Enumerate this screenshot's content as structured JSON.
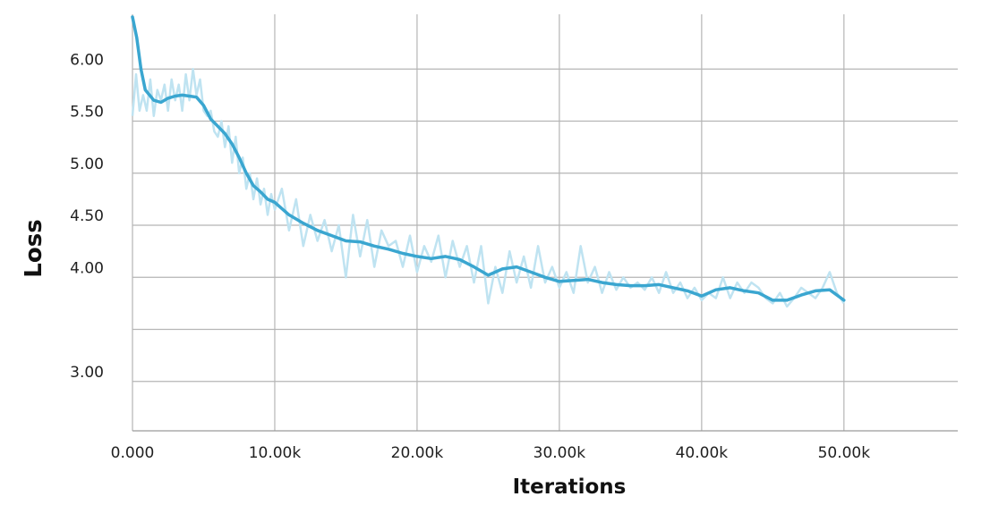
{
  "chart_data": {
    "type": "line",
    "xlabel": "Iterations",
    "ylabel": "Loss",
    "xlim": [
      0,
      58000
    ],
    "ylim": [
      2.5,
      6.5
    ],
    "x_ticks": [
      0,
      10000,
      20000,
      30000,
      40000,
      50000
    ],
    "x_tick_labels": [
      "0.000",
      "10.00k",
      "20.00k",
      "30.00k",
      "40.00k",
      "50.00k"
    ],
    "y_ticks": [
      3.0,
      3.5,
      4.0,
      4.5,
      5.0,
      5.5,
      6.0
    ],
    "y_tick_labels": [
      "3.00",
      "",
      "4.00",
      "4.50",
      "5.00",
      "5.50",
      "6.00"
    ],
    "grid": true,
    "colors": {
      "smoothed": "#3aa6d0",
      "raw": "#bfe3f1"
    },
    "series": [
      {
        "role": "smoothed",
        "x": [
          0,
          300,
          600,
          900,
          1200,
          1500,
          2000,
          2500,
          3000,
          3500,
          4000,
          4500,
          5000,
          5500,
          6000,
          6500,
          7000,
          7500,
          8000,
          8500,
          9000,
          9500,
          10000,
          11000,
          12000,
          13000,
          14000,
          15000,
          16000,
          17000,
          18000,
          19000,
          20000,
          21000,
          22000,
          23000,
          24000,
          25000,
          26000,
          27000,
          28000,
          29000,
          30000,
          31000,
          32000,
          33000,
          34000,
          35000,
          36000,
          37000,
          38000,
          39000,
          40000,
          41000,
          42000,
          43000,
          44000,
          45000,
          46000,
          47000,
          48000,
          49000,
          50000
        ],
        "y": [
          6.9,
          6.3,
          6.0,
          5.8,
          5.75,
          5.7,
          5.68,
          5.72,
          5.74,
          5.75,
          5.74,
          5.73,
          5.65,
          5.52,
          5.45,
          5.38,
          5.28,
          5.15,
          5.0,
          4.88,
          4.82,
          4.75,
          4.72,
          4.6,
          4.52,
          4.45,
          4.4,
          4.35,
          4.34,
          4.3,
          4.27,
          4.23,
          4.2,
          4.18,
          4.2,
          4.17,
          4.1,
          4.02,
          4.08,
          4.1,
          4.05,
          4.0,
          3.96,
          3.97,
          3.98,
          3.95,
          3.93,
          3.92,
          3.92,
          3.93,
          3.9,
          3.87,
          3.82,
          3.88,
          3.9,
          3.87,
          3.85,
          3.78,
          3.78,
          3.83,
          3.87,
          3.88,
          3.78
        ]
      },
      {
        "role": "raw",
        "x": [
          0,
          250,
          500,
          750,
          1000,
          1250,
          1500,
          1750,
          2000,
          2250,
          2500,
          2750,
          3000,
          3250,
          3500,
          3750,
          4000,
          4250,
          4500,
          4750,
          5000,
          5250,
          5500,
          5750,
          6000,
          6250,
          6500,
          6750,
          7000,
          7250,
          7500,
          7750,
          8000,
          8250,
          8500,
          8750,
          9000,
          9250,
          9500,
          9750,
          10000,
          10500,
          11000,
          11500,
          12000,
          12500,
          13000,
          13500,
          14000,
          14500,
          15000,
          15500,
          16000,
          16500,
          17000,
          17500,
          18000,
          18500,
          19000,
          19500,
          20000,
          20500,
          21000,
          21500,
          22000,
          22500,
          23000,
          23500,
          24000,
          24500,
          25000,
          25500,
          26000,
          26500,
          27000,
          27500,
          28000,
          28500,
          29000,
          29500,
          30000,
          30500,
          31000,
          31500,
          32000,
          32500,
          33000,
          33500,
          34000,
          34500,
          35000,
          35500,
          36000,
          36500,
          37000,
          37500,
          38000,
          38500,
          39000,
          39500,
          40000,
          40500,
          41000,
          41500,
          42000,
          42500,
          43000,
          43500,
          44000,
          44500,
          45000,
          45500,
          46000,
          46500,
          47000,
          47500,
          48000,
          48500,
          49000,
          49500,
          50000
        ],
        "y": [
          5.55,
          5.95,
          5.6,
          5.75,
          5.6,
          5.9,
          5.55,
          5.8,
          5.7,
          5.85,
          5.6,
          5.9,
          5.7,
          5.85,
          5.6,
          5.95,
          5.7,
          6.0,
          5.75,
          5.9,
          5.6,
          5.55,
          5.6,
          5.4,
          5.35,
          5.5,
          5.25,
          5.45,
          5.1,
          5.35,
          5.0,
          5.15,
          4.85,
          5.0,
          4.75,
          4.95,
          4.7,
          4.85,
          4.6,
          4.8,
          4.65,
          4.85,
          4.45,
          4.75,
          4.3,
          4.6,
          4.35,
          4.55,
          4.25,
          4.5,
          4.0,
          4.6,
          4.2,
          4.55,
          4.1,
          4.45,
          4.3,
          4.35,
          4.1,
          4.4,
          4.05,
          4.3,
          4.15,
          4.4,
          4.0,
          4.35,
          4.1,
          4.3,
          3.95,
          4.3,
          3.75,
          4.1,
          3.85,
          4.25,
          3.95,
          4.2,
          3.9,
          4.3,
          3.95,
          4.1,
          3.9,
          4.05,
          3.85,
          4.3,
          3.95,
          4.1,
          3.85,
          4.05,
          3.88,
          4.0,
          3.9,
          3.95,
          3.88,
          4.0,
          3.85,
          4.05,
          3.85,
          3.95,
          3.8,
          3.9,
          3.78,
          3.85,
          3.8,
          4.0,
          3.8,
          3.95,
          3.85,
          3.95,
          3.9,
          3.8,
          3.75,
          3.85,
          3.72,
          3.8,
          3.9,
          3.85,
          3.8,
          3.9,
          4.05,
          3.85,
          3.75
        ]
      }
    ]
  }
}
